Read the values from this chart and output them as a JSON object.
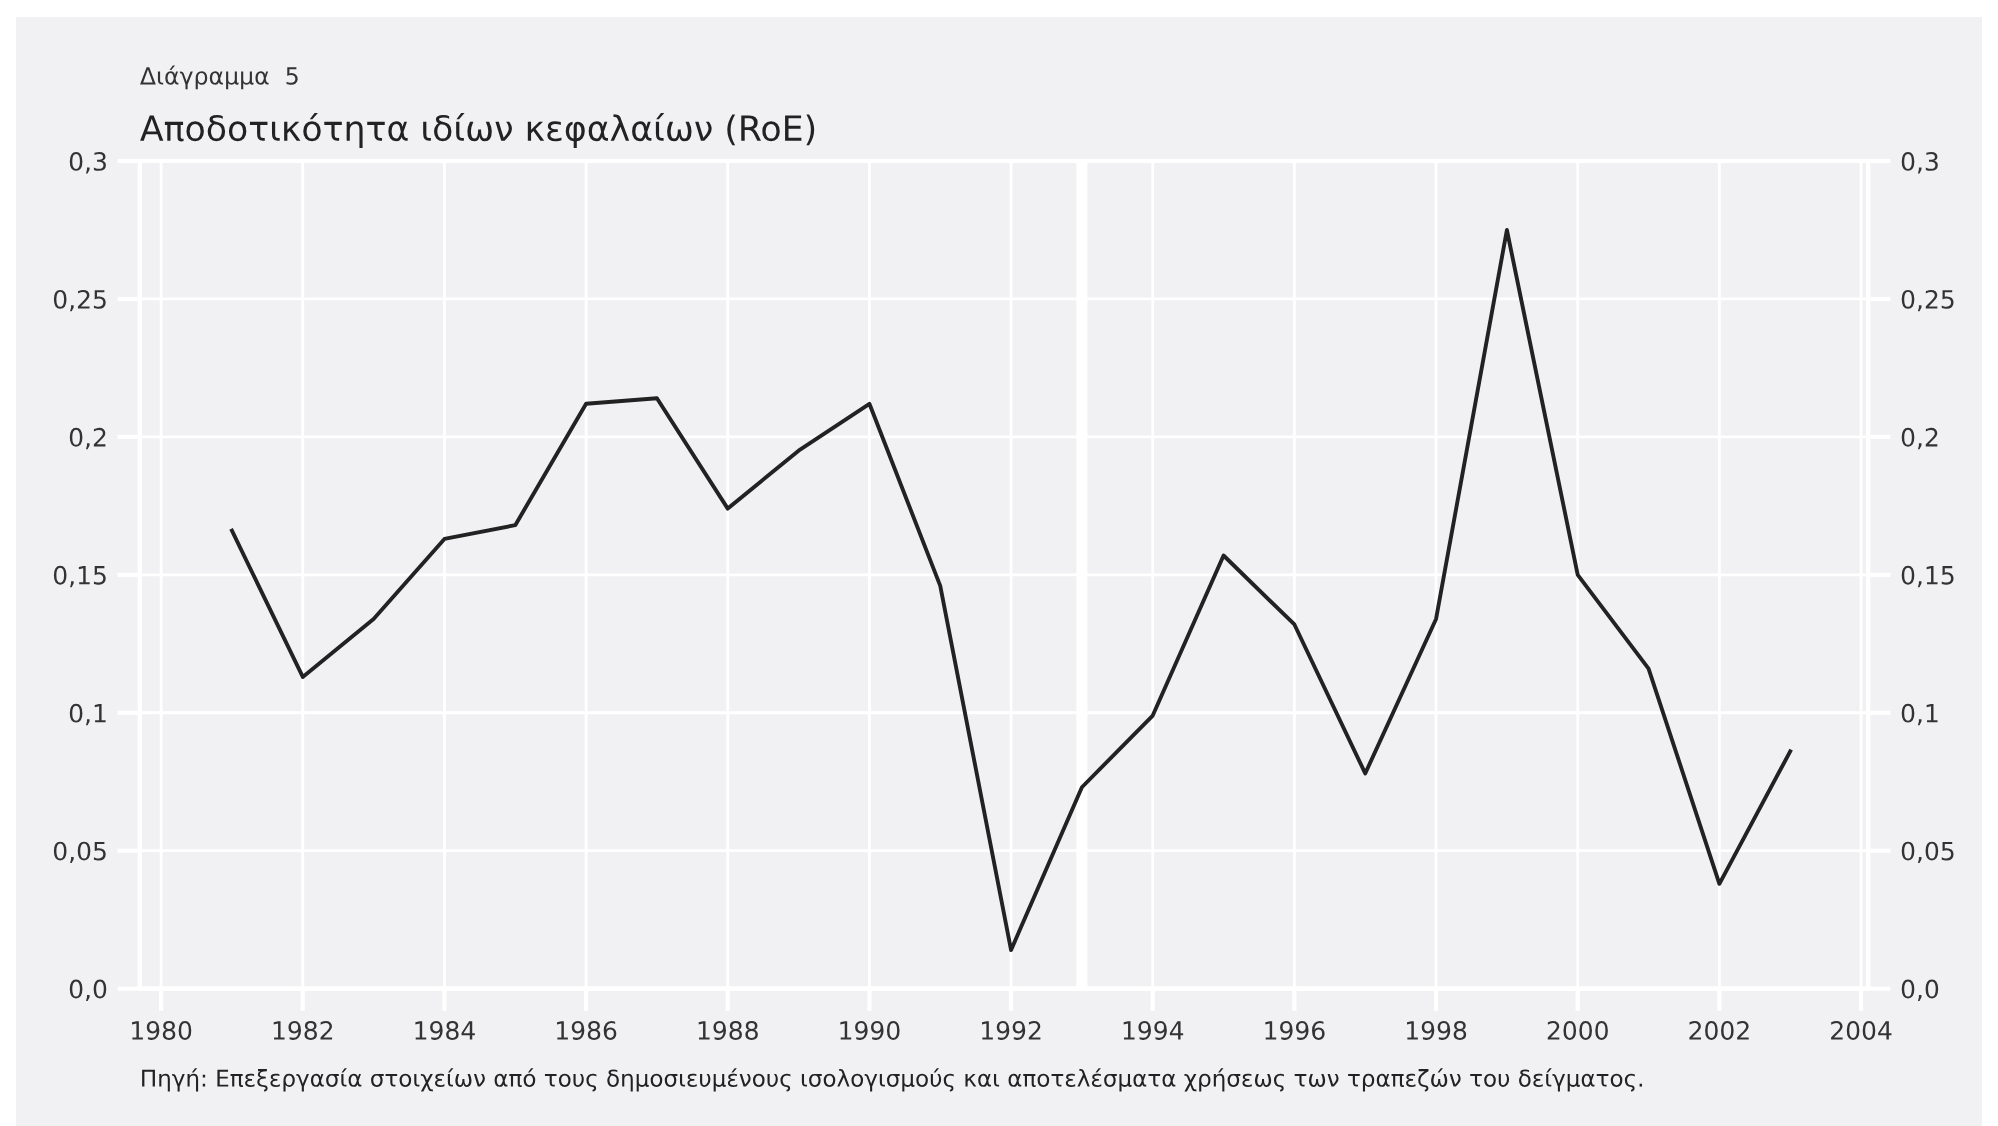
{
  "chart_data": {
    "type": "line",
    "subtitle": "Διάγραμμα  5",
    "title": "Αποδοτικότητα ιδίων κεφαλαίων (RoE)",
    "annotations": [
      "Πηγή: Επεξεργασία στοιχείων από τους δημοσιευμένους ισολογισμούς και αποτελέσματα χρήσεως των τραπεζών του δείγματος."
    ],
    "x": [
      1981,
      1982,
      1983,
      1984,
      1985,
      1986,
      1987,
      1988,
      1989,
      1990,
      1991,
      1992,
      1993,
      1994,
      1995,
      1996,
      1997,
      1998,
      1999,
      2000,
      2001,
      2002,
      2003
    ],
    "series": [
      {
        "color": "#222222",
        "values": [
          0.166,
          0.113,
          0.134,
          0.163,
          0.168,
          0.212,
          0.214,
          0.174,
          0.195,
          0.212,
          0.146,
          0.014,
          0.073,
          0.099,
          0.157,
          0.132,
          0.078,
          0.134,
          0.275,
          0.15,
          0.116,
          0.038,
          0.086
        ]
      }
    ],
    "xlim": [
      1979.7,
      2004.1
    ],
    "xticks": [
      1980,
      1982,
      1984,
      1986,
      1988,
      1990,
      1992,
      1994,
      1996,
      1998,
      2000,
      2002,
      2004
    ],
    "ylim": [
      0,
      0.3
    ],
    "yticks": [
      {
        "value": 0,
        "label": "0,0"
      },
      {
        "value": 0.05,
        "label": "0,05"
      },
      {
        "value": 0.1,
        "label": "0,1"
      },
      {
        "value": 0.15,
        "label": "0,15"
      },
      {
        "value": 0.2,
        "label": "0,2"
      },
      {
        "value": 0.25,
        "label": "0,25"
      },
      {
        "value": 0.3,
        "label": "0,3"
      }
    ],
    "y2lim": [
      0,
      0.3
    ],
    "y2ticks": [
      {
        "value": 0,
        "label": "0,0"
      },
      {
        "value": 0.05,
        "label": "0,05"
      },
      {
        "value": 0.1,
        "label": "0,1"
      },
      {
        "value": 0.15,
        "label": "0,15"
      },
      {
        "value": 0.2,
        "label": "0,2"
      },
      {
        "value": 0.25,
        "label": "0,25"
      },
      {
        "value": 0.3,
        "label": "0,3"
      }
    ],
    "ref_lines": [
      {
        "axis": "x",
        "value": 1993,
        "color": "#ffffff"
      }
    ],
    "grid": true,
    "legend": false,
    "marker": "none",
    "line_style": "solid"
  }
}
